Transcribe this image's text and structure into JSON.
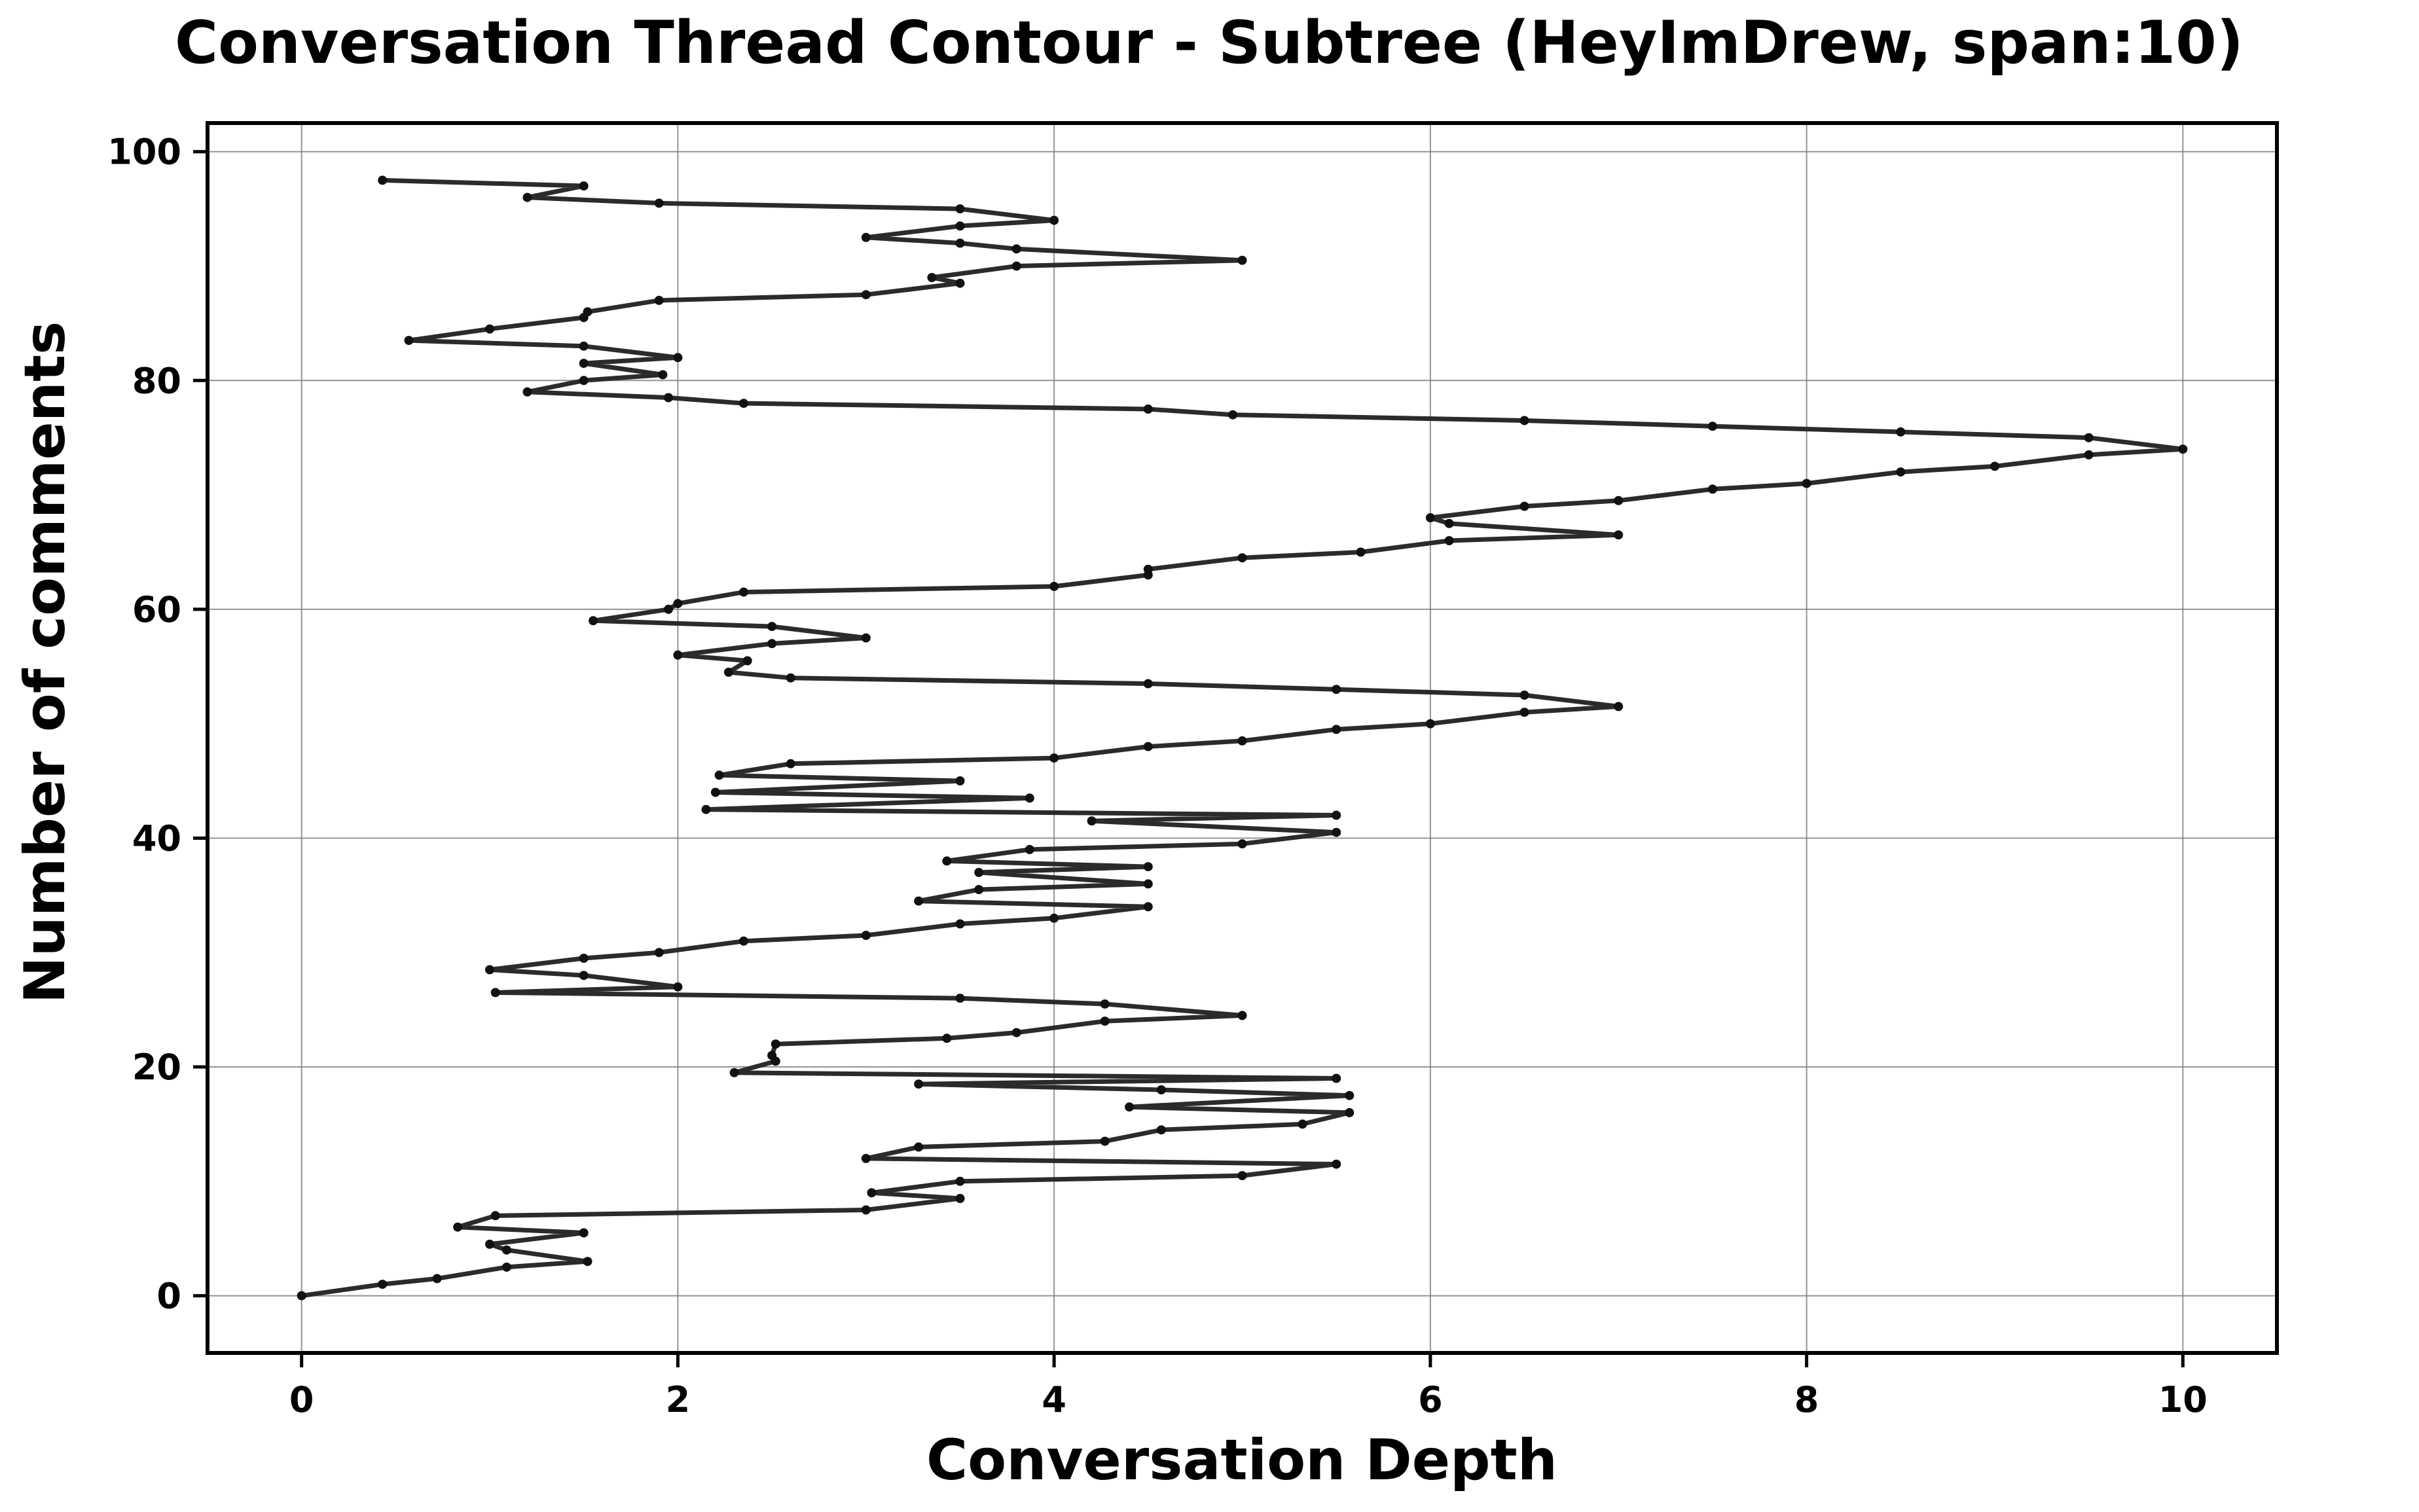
{
  "chart_data": {
    "type": "line",
    "title": "Conversation Thread Contour  - Subtree (HeyImDrew, span:10)",
    "xlabel": "Conversation Depth",
    "ylabel": "Number of comments",
    "xlim": [
      -0.5,
      10.5
    ],
    "ylim": [
      -5,
      102.5
    ],
    "xticks": [
      0,
      2,
      4,
      6,
      8,
      10
    ],
    "yticks": [
      0,
      20,
      40,
      60,
      80,
      100
    ],
    "grid": true,
    "legend": "none",
    "line_color": "#2b2b2b",
    "series": [
      {
        "points": [
          [
            0,
            0
          ],
          [
            0.43,
            1
          ],
          [
            0.72,
            1.5
          ],
          [
            1.09,
            2.5
          ],
          [
            1.52,
            3
          ],
          [
            1.09,
            4
          ],
          [
            1.0,
            4.5
          ],
          [
            1.5,
            5.5
          ],
          [
            0.83,
            6
          ],
          [
            1.03,
            7
          ],
          [
            3.0,
            7.5
          ],
          [
            3.5,
            8.5
          ],
          [
            3.03,
            9
          ],
          [
            3.5,
            10
          ],
          [
            5.0,
            10.5
          ],
          [
            5.5,
            11.5
          ],
          [
            3.0,
            12
          ],
          [
            3.28,
            13
          ],
          [
            4.27,
            13.5
          ],
          [
            4.57,
            14.5
          ],
          [
            5.32,
            15
          ],
          [
            5.57,
            16
          ],
          [
            4.4,
            16.5
          ],
          [
            5.57,
            17.5
          ],
          [
            4.57,
            18
          ],
          [
            3.28,
            18.5
          ],
          [
            5.5,
            19
          ],
          [
            2.3,
            19.5
          ],
          [
            2.52,
            20.5
          ],
          [
            2.5,
            21
          ],
          [
            2.52,
            22
          ],
          [
            3.43,
            22.5
          ],
          [
            3.8,
            23
          ],
          [
            4.27,
            24
          ],
          [
            5.0,
            24.5
          ],
          [
            4.27,
            25.5
          ],
          [
            3.5,
            26
          ],
          [
            1.03,
            26.5
          ],
          [
            2.0,
            27
          ],
          [
            1.5,
            28
          ],
          [
            1.0,
            28.5
          ],
          [
            1.5,
            29.5
          ],
          [
            1.9,
            30
          ],
          [
            2.35,
            31
          ],
          [
            3.0,
            31.5
          ],
          [
            3.5,
            32.5
          ],
          [
            4.0,
            33
          ],
          [
            4.5,
            34
          ],
          [
            3.28,
            34.5
          ],
          [
            3.6,
            35.5
          ],
          [
            4.5,
            36
          ],
          [
            3.6,
            37
          ],
          [
            4.5,
            37.5
          ],
          [
            3.43,
            38
          ],
          [
            3.87,
            39
          ],
          [
            5.0,
            39.5
          ],
          [
            5.5,
            40.5
          ],
          [
            4.2,
            41.5
          ],
          [
            5.5,
            42
          ],
          [
            2.15,
            42.5
          ],
          [
            3.87,
            43.5
          ],
          [
            2.2,
            44
          ],
          [
            3.5,
            45
          ],
          [
            2.22,
            45.5
          ],
          [
            2.6,
            46.5
          ],
          [
            4.0,
            47
          ],
          [
            4.5,
            48
          ],
          [
            5.0,
            48.5
          ],
          [
            5.5,
            49.5
          ],
          [
            6.0,
            50
          ],
          [
            6.5,
            51
          ],
          [
            7.0,
            51.5
          ],
          [
            6.5,
            52.5
          ],
          [
            5.5,
            53
          ],
          [
            4.5,
            53.5
          ],
          [
            2.6,
            54
          ],
          [
            2.27,
            54.5
          ],
          [
            2.37,
            55.5
          ],
          [
            2.0,
            56
          ],
          [
            2.5,
            57
          ],
          [
            3.0,
            57.5
          ],
          [
            2.5,
            58.5
          ],
          [
            1.55,
            59
          ],
          [
            1.95,
            60
          ],
          [
            2.0,
            60.5
          ],
          [
            2.35,
            61.5
          ],
          [
            4.0,
            62
          ],
          [
            4.5,
            63
          ],
          [
            4.5,
            63.5
          ],
          [
            5.0,
            64.5
          ],
          [
            5.63,
            65
          ],
          [
            6.1,
            66
          ],
          [
            7.0,
            66.5
          ],
          [
            6.1,
            67.5
          ],
          [
            6.0,
            68
          ],
          [
            6.5,
            69
          ],
          [
            7.0,
            69.5
          ],
          [
            7.5,
            70.5
          ],
          [
            8.0,
            71
          ],
          [
            8.5,
            72
          ],
          [
            9.0,
            72.5
          ],
          [
            9.5,
            73.5
          ],
          [
            10.0,
            74
          ],
          [
            9.5,
            75
          ],
          [
            8.5,
            75.5
          ],
          [
            7.5,
            76
          ],
          [
            6.5,
            76.5
          ],
          [
            4.95,
            77
          ],
          [
            4.5,
            77.5
          ],
          [
            2.35,
            78
          ],
          [
            1.95,
            78.5
          ],
          [
            1.2,
            79
          ],
          [
            1.5,
            80
          ],
          [
            1.92,
            80.5
          ],
          [
            1.5,
            81.5
          ],
          [
            2.0,
            82
          ],
          [
            1.5,
            83
          ],
          [
            0.57,
            83.5
          ],
          [
            1.0,
            84.5
          ],
          [
            1.5,
            85.5
          ],
          [
            1.52,
            86
          ],
          [
            1.9,
            87
          ],
          [
            3.0,
            87.5
          ],
          [
            3.5,
            88.5
          ],
          [
            3.35,
            89
          ],
          [
            3.8,
            90
          ],
          [
            5.0,
            90.5
          ],
          [
            3.8,
            91.5
          ],
          [
            3.5,
            92
          ],
          [
            3.0,
            92.5
          ],
          [
            3.5,
            93.5
          ],
          [
            4.0,
            94
          ],
          [
            3.5,
            95
          ],
          [
            1.9,
            95.5
          ],
          [
            1.2,
            96
          ],
          [
            1.5,
            97
          ],
          [
            0.43,
            97.5
          ]
        ]
      }
    ]
  }
}
